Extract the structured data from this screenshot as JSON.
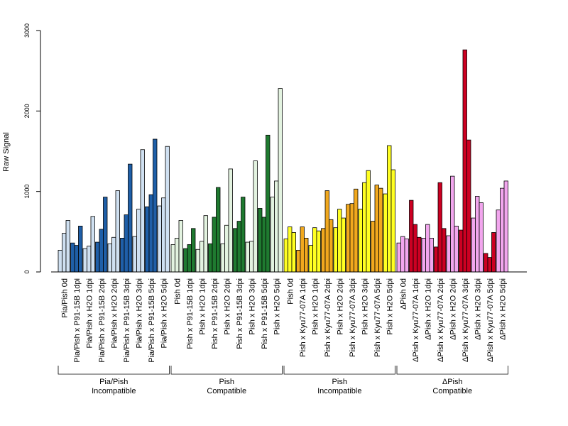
{
  "chart_data": {
    "type": "bar",
    "ylabel": "Raw Signal",
    "ylim": [
      0,
      3000
    ],
    "yticks": [
      0,
      1000,
      2000,
      3000
    ],
    "series_colors": {
      "light_blue": "#cfe0f1",
      "dark_blue": "#1f5fa8",
      "light_green": "#e3f3e0",
      "dark_green": "#1f7a30",
      "orange": "#f1a81e",
      "yellow": "#ffff22",
      "red": "#cc0022",
      "pink": "#f2a6ee"
    },
    "groups": [
      {
        "label_line1": "Pia/Pish",
        "label_line2": "Incompatible",
        "categories": [
          {
            "label": "Pia/Pish 0d",
            "color": "light_blue",
            "values": [
              270,
              480,
              640
            ]
          },
          {
            "label": "Pia/Pish x P91-15B 1dpi",
            "color": "dark_blue",
            "values": [
              360,
              330,
              570
            ]
          },
          {
            "label": "Pia/Pish x H2O 1dpi",
            "color": "light_blue",
            "values": [
              290,
              320,
              690
            ]
          },
          {
            "label": "Pia/Pish x P91-15B 2dpi",
            "color": "dark_blue",
            "values": [
              370,
              530,
              930
            ]
          },
          {
            "label": "Pia/Pish x H2O 2dpi",
            "color": "light_blue",
            "values": [
              350,
              430,
              1010
            ]
          },
          {
            "label": "Pia/Pish x P91-15B 3dpi",
            "color": "dark_blue",
            "values": [
              420,
              710,
              1340
            ]
          },
          {
            "label": "Pia/Pish x H2O 3dpi",
            "color": "light_blue",
            "values": [
              440,
              780,
              1520
            ]
          },
          {
            "label": "Pia/Pish x P91-15B 5dpi",
            "color": "dark_blue",
            "values": [
              810,
              960,
              1650
            ]
          },
          {
            "label": "Pia/Pish x H2O 5dpi",
            "color": "light_blue",
            "values": [
              820,
              920,
              1560
            ]
          }
        ]
      },
      {
        "label_line1": "Pish",
        "label_line2": "Compatible",
        "categories": [
          {
            "label": "Pish 0d",
            "color": "light_green",
            "values": [
              340,
              420,
              640
            ]
          },
          {
            "label": "Pish x P91-15B 1dpi",
            "color": "dark_green",
            "values": [
              290,
              340,
              540
            ]
          },
          {
            "label": "Pish x H2O 1dpi",
            "color": "light_green",
            "values": [
              280,
              380,
              700
            ]
          },
          {
            "label": "Pish x P91-15B 2dpi",
            "color": "dark_green",
            "values": [
              350,
              680,
              1050
            ]
          },
          {
            "label": "Pish x H2O 2dpi",
            "color": "light_green",
            "values": [
              350,
              580,
              1280
            ]
          },
          {
            "label": "Pish x P91-15B 3dpi",
            "color": "dark_green",
            "values": [
              540,
              630,
              930
            ]
          },
          {
            "label": "Pish x H2O 3dpi",
            "color": "light_green",
            "values": [
              370,
              380,
              1380
            ]
          },
          {
            "label": "Pish x P91-15B 5dpi",
            "color": "dark_green",
            "values": [
              790,
              680,
              1700
            ]
          },
          {
            "label": "Pish x H2O 5dpi",
            "color": "light_green",
            "values": [
              930,
              1130,
              2280
            ]
          }
        ]
      },
      {
        "label_line1": "Pish",
        "label_line2": "Incompatible",
        "categories": [
          {
            "label": "Pish 0d",
            "color": "yellow",
            "values": [
              410,
              560,
              490
            ]
          },
          {
            "label": "Pish x Kyu77-07A 1dpi",
            "color": "orange",
            "values": [
              270,
              560,
              420
            ]
          },
          {
            "label": "Pish x H2O 1dpi",
            "color": "yellow",
            "values": [
              330,
              550,
              510
            ]
          },
          {
            "label": "Pish x Kyu77-07A 2dpi",
            "color": "orange",
            "values": [
              540,
              1010,
              650
            ]
          },
          {
            "label": "Pish x H2O 2dpi",
            "color": "yellow",
            "values": [
              550,
              780,
              670
            ]
          },
          {
            "label": "Pish x Kyu77-07A 3dpi",
            "color": "orange",
            "values": [
              840,
              850,
              1030
            ]
          },
          {
            "label": "Pish x H2O 3dpi",
            "color": "yellow",
            "values": [
              780,
              1110,
              1260
            ]
          },
          {
            "label": "Pish x Kyu77-07A 5dpi",
            "color": "orange",
            "values": [
              630,
              1080,
              1040
            ]
          },
          {
            "label": "Pish x H2O 5dpi",
            "color": "yellow",
            "values": [
              970,
              1570,
              1270
            ]
          }
        ]
      },
      {
        "label_line1": "ΔPish",
        "label_line2": "Compatible",
        "categories": [
          {
            "label": "ΔPish 0d",
            "color": "pink",
            "values": [
              360,
              440,
              410
            ]
          },
          {
            "label": "ΔPish x Kyu77-07A 1dpi",
            "color": "red",
            "values": [
              890,
              590,
              430
            ]
          },
          {
            "label": "ΔPish x H2O 1dpi",
            "color": "pink",
            "values": [
              420,
              590,
              420
            ]
          },
          {
            "label": "ΔPish x Kyu77-07A 2dpi",
            "color": "red",
            "values": [
              310,
              1110,
              540
            ]
          },
          {
            "label": "ΔPish x H2O 2dpi",
            "color": "pink",
            "values": [
              450,
              1190,
              570
            ]
          },
          {
            "label": "ΔPish x Kyu77-07A 3dpi",
            "color": "red",
            "values": [
              520,
              2760,
              1640
            ]
          },
          {
            "label": "ΔPish x H2O 3dpi",
            "color": "pink",
            "values": [
              670,
              940,
              860
            ]
          },
          {
            "label": "ΔPish x Kyu77-07A 5dpi",
            "color": "red",
            "values": [
              230,
              180,
              490
            ]
          },
          {
            "label": "ΔPish x H2O 5dpi",
            "color": "pink",
            "values": [
              770,
              1040,
              1130
            ]
          }
        ]
      }
    ]
  }
}
